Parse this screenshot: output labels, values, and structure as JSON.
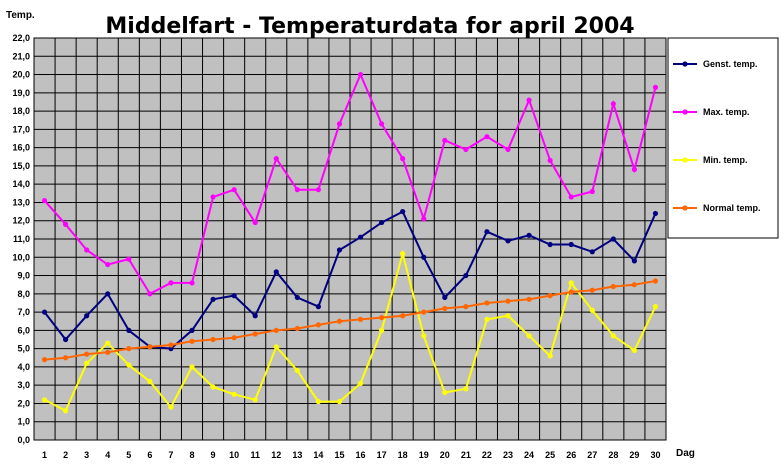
{
  "chart_data": {
    "type": "line",
    "title": "Middelfart - Temperaturdata for april 2004",
    "ylabel": "Temp.",
    "xlabel": "Dag",
    "ylim": [
      0,
      22
    ],
    "ytick_step": 1,
    "grid": true,
    "legend_position": "right",
    "x": [
      1,
      2,
      3,
      4,
      5,
      6,
      7,
      8,
      9,
      10,
      11,
      12,
      13,
      14,
      15,
      16,
      17,
      18,
      19,
      20,
      21,
      22,
      23,
      24,
      25,
      26,
      27,
      28,
      29,
      30
    ],
    "series": [
      {
        "name": "Genst. temp.",
        "color": "#000080",
        "values": [
          7.0,
          5.5,
          6.8,
          8.0,
          6.0,
          5.1,
          5.0,
          6.0,
          7.7,
          7.9,
          6.8,
          9.2,
          7.8,
          7.3,
          10.4,
          11.1,
          11.9,
          12.5,
          10.0,
          7.8,
          9.0,
          11.4,
          10.9,
          11.2,
          10.7,
          10.7,
          10.3,
          11.0,
          9.8,
          12.4
        ]
      },
      {
        "name": "Max. temp.",
        "color": "#ff00ff",
        "values": [
          13.1,
          11.8,
          10.4,
          9.6,
          9.9,
          8.0,
          8.6,
          8.6,
          13.3,
          13.7,
          11.9,
          15.4,
          13.7,
          13.7,
          17.3,
          20.0,
          17.3,
          15.4,
          12.1,
          16.4,
          15.9,
          16.6,
          15.9,
          18.6,
          15.3,
          13.3,
          13.6,
          18.4,
          14.8,
          19.3
        ]
      },
      {
        "name": "Min. temp.",
        "color": "#ffff00",
        "values": [
          2.2,
          1.6,
          4.2,
          5.3,
          4.1,
          3.2,
          1.8,
          4.0,
          2.9,
          2.5,
          2.2,
          5.1,
          3.8,
          2.1,
          2.1,
          3.1,
          6.0,
          10.2,
          5.7,
          2.6,
          2.8,
          6.6,
          6.8,
          5.7,
          4.6,
          8.6,
          7.1,
          5.7,
          4.9,
          7.3
        ]
      },
      {
        "name": "Normal temp.",
        "color": "#ff6600",
        "values": [
          4.4,
          4.5,
          4.7,
          4.8,
          5.0,
          5.1,
          5.2,
          5.4,
          5.5,
          5.6,
          5.8,
          6.0,
          6.1,
          6.3,
          6.5,
          6.6,
          6.7,
          6.8,
          7.0,
          7.2,
          7.3,
          7.5,
          7.6,
          7.7,
          7.9,
          8.1,
          8.2,
          8.4,
          8.5,
          8.7
        ]
      }
    ]
  }
}
